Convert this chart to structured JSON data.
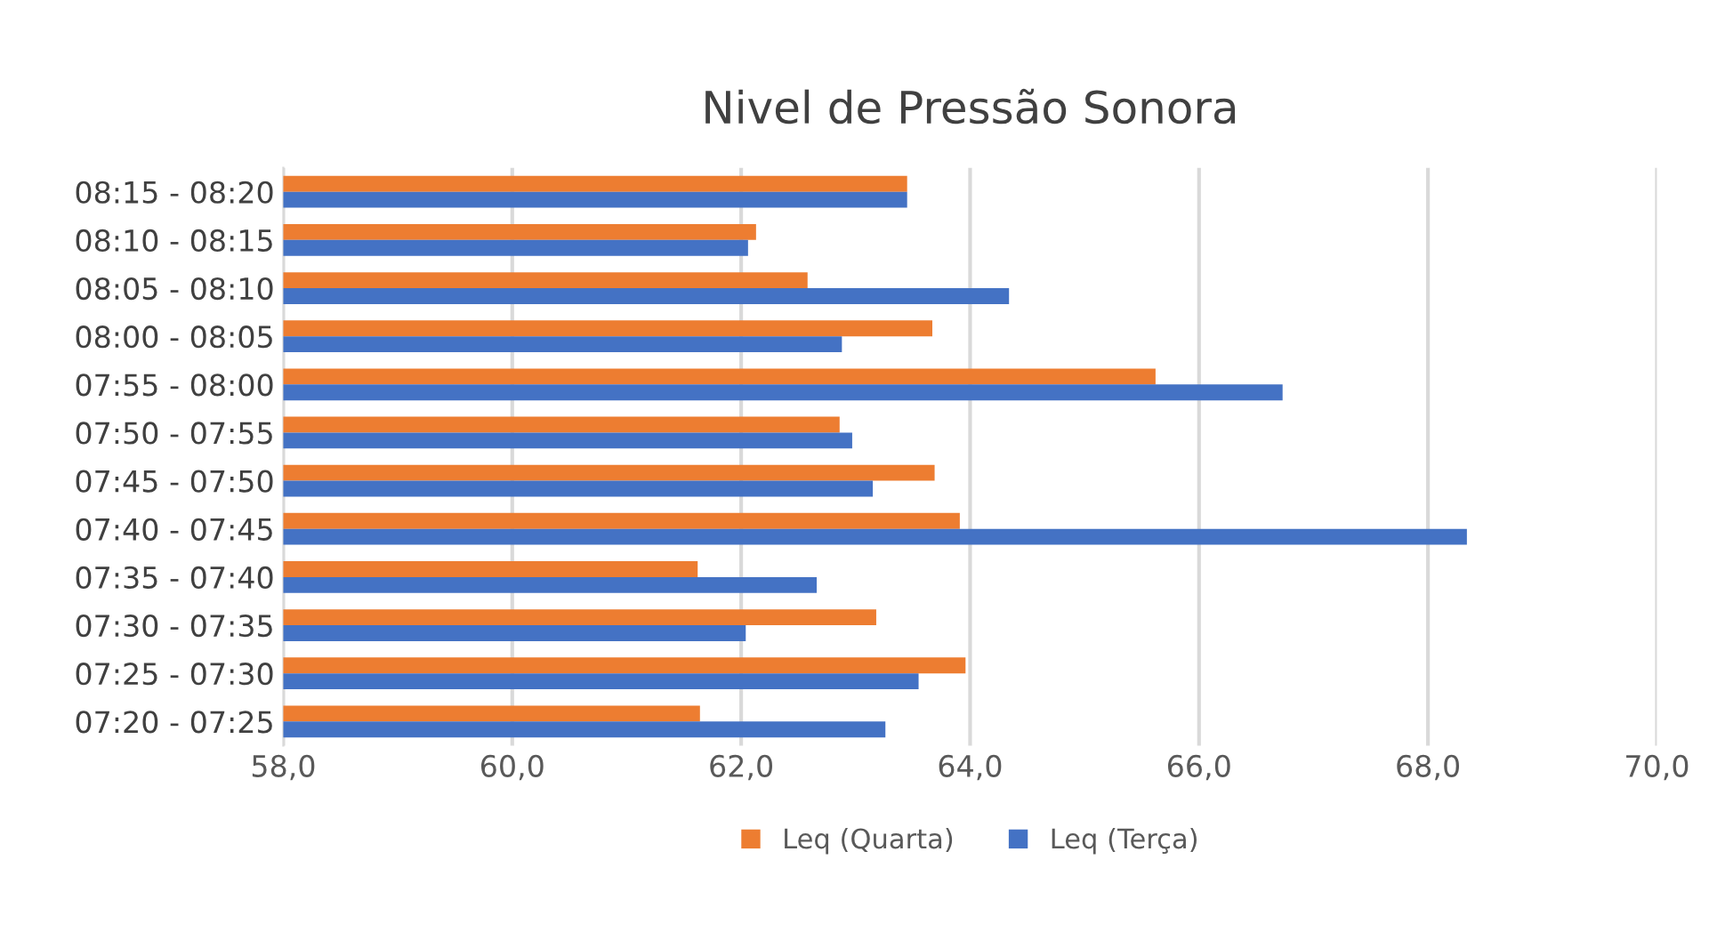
{
  "chart_data": {
    "type": "bar",
    "orientation": "horizontal",
    "title": "Nivel de Pressão Sonora",
    "categories": [
      "08:15 - 08:20",
      "08:10 - 08:15",
      "08:05 - 08:10",
      "08:00 - 08:05",
      "07:55 - 08:00",
      "07:50 - 07:55",
      "07:45 - 07:50",
      "07:40 - 07:45",
      "07:35 - 07:40",
      "07:30 - 07:35",
      "07:25 - 07:30",
      "07:20 - 07:25"
    ],
    "series": [
      {
        "name": "Leq (Quarta)",
        "color": "#ed7d31",
        "values": [
          63.45,
          62.13,
          62.58,
          63.67,
          65.62,
          62.86,
          63.69,
          63.91,
          61.62,
          63.18,
          63.96,
          61.64
        ]
      },
      {
        "name": "Leq (Terça)",
        "color": "#4472c4",
        "values": [
          63.45,
          62.06,
          64.34,
          62.88,
          66.73,
          62.97,
          63.15,
          68.34,
          62.66,
          62.04,
          63.55,
          63.26
        ]
      }
    ],
    "xlim": [
      58,
      70
    ],
    "xticks": [
      {
        "value": 58,
        "label": "58,0"
      },
      {
        "value": 60,
        "label": "60,0"
      },
      {
        "value": 62,
        "label": "62,0"
      },
      {
        "value": 64,
        "label": "64,0"
      },
      {
        "value": 66,
        "label": "66,0"
      },
      {
        "value": 68,
        "label": "68,0"
      },
      {
        "value": 70,
        "label": "70,0"
      }
    ],
    "grid": "x",
    "legend": "bottom"
  }
}
